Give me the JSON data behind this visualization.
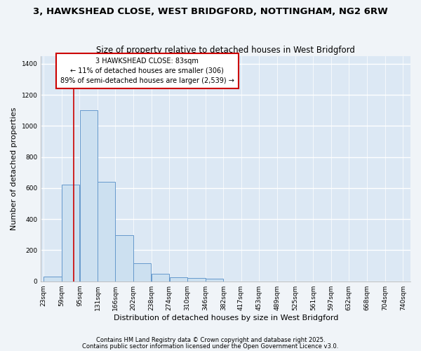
{
  "title": "3, HAWKSHEAD CLOSE, WEST BRIDGFORD, NOTTINGHAM, NG2 6RW",
  "subtitle": "Size of property relative to detached houses in West Bridgford",
  "xlabel": "Distribution of detached houses by size in West Bridgford",
  "ylabel": "Number of detached properties",
  "bin_edges": [
    23,
    59,
    95,
    131,
    166,
    202,
    238,
    274,
    310,
    346,
    382,
    417,
    453,
    489,
    525,
    561,
    597,
    632,
    668,
    704,
    740
  ],
  "bar_heights": [
    30,
    620,
    1100,
    640,
    295,
    115,
    50,
    25,
    20,
    15,
    0,
    0,
    0,
    0,
    0,
    0,
    0,
    0,
    0,
    0
  ],
  "bar_color": "#cce0f0",
  "bar_edge_color": "#6699cc",
  "property_size": 83,
  "vline_color": "#cc0000",
  "annotation_text": "3 HAWKSHEAD CLOSE: 83sqm\n← 11% of detached houses are smaller (306)\n89% of semi-detached houses are larger (2,539) →",
  "annotation_box_facecolor": "#ffffff",
  "annotation_box_edgecolor": "#cc0000",
  "ylim": [
    0,
    1450
  ],
  "yticks": [
    0,
    200,
    400,
    600,
    800,
    1000,
    1200,
    1400
  ],
  "bg_color": "#f0f4f8",
  "plot_bg_color": "#dce8f4",
  "footer_line1": "Contains HM Land Registry data © Crown copyright and database right 2025.",
  "footer_line2": "Contains public sector information licensed under the Open Government Licence v3.0.",
  "grid_color": "#ffffff",
  "title_fontsize": 9.5,
  "subtitle_fontsize": 8.5,
  "label_fontsize": 8,
  "tick_fontsize": 6.5,
  "annotation_fontsize": 7,
  "footer_fontsize": 6
}
